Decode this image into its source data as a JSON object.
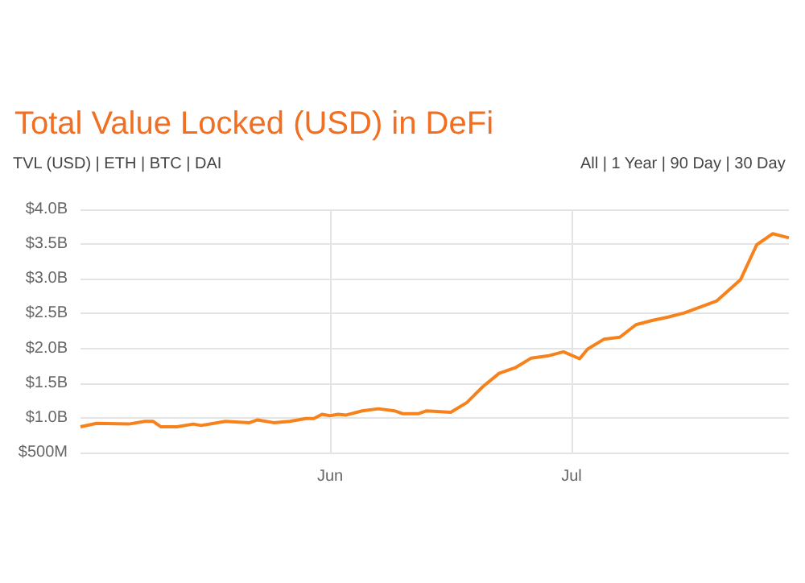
{
  "chart_data": {
    "type": "line",
    "title": "Total Value Locked (USD) in DeFi",
    "annotations": [
      "TVL (USD) | ETH | BTC | DAI",
      "All | 1 Year | 90 Day | 30 Day"
    ],
    "x": [
      "--05-01",
      "--05-03",
      "--05-07",
      "--05-09",
      "--05-10",
      "--05-11",
      "--05-13",
      "--05-15",
      "--05-16",
      "--05-19",
      "--05-22",
      "--05-23",
      "--05-25",
      "--05-27",
      "--05-29",
      "--05-30",
      "--05-31",
      "--06-01",
      "--06-02",
      "--06-03",
      "--06-05",
      "--06-07",
      "--06-09",
      "--06-10",
      "--06-12",
      "--06-13",
      "--06-16",
      "--06-18",
      "--06-20",
      "--06-22",
      "--06-24",
      "--06-26",
      "--06-28",
      "--06-30",
      "--07-02",
      "--07-03",
      "--07-05",
      "--07-07",
      "--07-09",
      "--07-11",
      "--07-13",
      "--07-15",
      "--07-19",
      "--07-22",
      "--07-24",
      "--07-26",
      "--07-28"
    ],
    "series": [
      {
        "color": "#f7821b",
        "values": [
          870000000,
          920000000,
          910000000,
          950000000,
          950000000,
          870000000,
          870000000,
          910000000,
          890000000,
          950000000,
          930000000,
          970000000,
          930000000,
          950000000,
          990000000,
          990000000,
          1050000000,
          1030000000,
          1050000000,
          1040000000,
          1100000000,
          1130000000,
          1100000000,
          1060000000,
          1060000000,
          1100000000,
          1080000000,
          1220000000,
          1450000000,
          1640000000,
          1720000000,
          1860000000,
          1890000000,
          1950000000,
          1850000000,
          1990000000,
          2130000000,
          2160000000,
          2340000000,
          2400000000,
          2450000000,
          2510000000,
          2680000000,
          2990000000,
          3490000000,
          3650000000,
          3590000000
        ]
      }
    ],
    "xlim": [
      "--05-01",
      "--07-28"
    ],
    "xticks": [
      {
        "value": "--06-01",
        "label": "Jun"
      },
      {
        "value": "--07-01",
        "label": "Jul"
      }
    ],
    "ylim": [
      500000000,
      4000000000
    ],
    "yticks": [
      {
        "value": 500000000,
        "label": "$500M"
      },
      {
        "value": 1000000000,
        "label": "$1.0B"
      },
      {
        "value": 1500000000,
        "label": "$1.5B"
      },
      {
        "value": 2000000000,
        "label": "$2.0B"
      },
      {
        "value": 2500000000,
        "label": "$2.5B"
      },
      {
        "value": 3000000000,
        "label": "$3.0B"
      },
      {
        "value": 3500000000,
        "label": "$3.5B"
      },
      {
        "value": 4000000000,
        "label": "$4.0B"
      }
    ],
    "grid": true,
    "marker": "none",
    "line_style": "solid"
  }
}
